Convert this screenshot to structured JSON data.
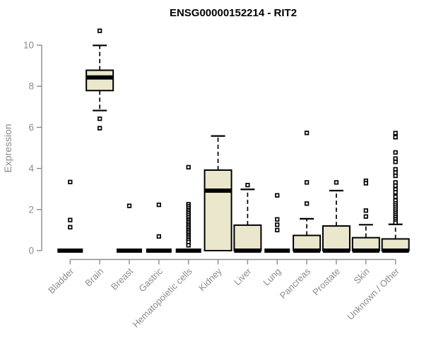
{
  "chart_data": {
    "type": "boxplot",
    "title": "ENSG00000152214 - RIT2",
    "xlabel": "",
    "ylabel": "Expression",
    "ylim": [
      0,
      10
    ],
    "yticks": [
      0,
      2,
      4,
      6,
      8,
      10
    ],
    "grid": false,
    "legend": false,
    "categories": [
      "Bladder",
      "Brain",
      "Breast",
      "Gastric",
      "Hematopoietic cells",
      "Kidney",
      "Liver",
      "Lung",
      "Pancreas",
      "Prostate",
      "Skin",
      "Unknown / Other"
    ],
    "boxes": [
      {
        "category": "Bladder",
        "q1": 0,
        "median": 0,
        "q3": 0,
        "whisker_low": 0,
        "whisker_high": 0,
        "outliers": [
          3.34,
          1.49,
          1.14
        ]
      },
      {
        "category": "Brain",
        "q1": 7.79,
        "median": 8.43,
        "q3": 8.78,
        "whisker_low": 6.82,
        "whisker_high": 9.99,
        "outliers": [
          10.7,
          6.42,
          5.96
        ]
      },
      {
        "category": "Breast",
        "q1": 0,
        "median": 0,
        "q3": 0,
        "whisker_low": 0,
        "whisker_high": 0,
        "outliers": [
          2.18
        ]
      },
      {
        "category": "Gastric",
        "q1": 0,
        "median": 0,
        "q3": 0,
        "whisker_low": 0,
        "whisker_high": 0,
        "outliers": [
          2.23,
          0.69
        ]
      },
      {
        "category": "Hematopoietic cells",
        "q1": 0,
        "median": 0,
        "q3": 0,
        "whisker_low": 0,
        "whisker_high": 0,
        "outliers": [
          4.06,
          2.26,
          2.16,
          2.07,
          1.98,
          1.9,
          1.82,
          1.73,
          1.64,
          1.55,
          1.47,
          1.39,
          1.31,
          1.23,
          1.15,
          1.07,
          0.99,
          0.91,
          0.83,
          0.75,
          0.67,
          0.59,
          0.51,
          0.42,
          0.26
        ]
      },
      {
        "category": "Kidney",
        "q1": 0,
        "median": 2.92,
        "q3": 3.92,
        "whisker_low": 0,
        "whisker_high": 5.58,
        "outliers": []
      },
      {
        "category": "Liver",
        "q1": 0,
        "median": 0,
        "q3": 1.24,
        "whisker_low": 0,
        "whisker_high": 2.98,
        "outliers": [
          3.19
        ]
      },
      {
        "category": "Lung",
        "q1": 0,
        "median": 0,
        "q3": 0,
        "whisker_low": 0,
        "whisker_high": 0,
        "outliers": [
          2.69,
          1.52,
          1.26,
          1.0
        ]
      },
      {
        "category": "Pancreas",
        "q1": 0,
        "median": 0,
        "q3": 0.74,
        "whisker_low": 0,
        "whisker_high": 1.55,
        "outliers": [
          5.73,
          3.32,
          2.29
        ]
      },
      {
        "category": "Prostate",
        "q1": 0,
        "median": 0,
        "q3": 1.2,
        "whisker_low": 0,
        "whisker_high": 2.92,
        "outliers": [
          3.32
        ]
      },
      {
        "category": "Skin",
        "q1": 0,
        "median": 0,
        "q3": 0.63,
        "whisker_low": 0,
        "whisker_high": 1.26,
        "outliers": [
          3.4,
          3.28,
          1.95,
          1.66
        ]
      },
      {
        "category": "Unknown / Other",
        "q1": 0,
        "median": 0,
        "q3": 0.57,
        "whisker_low": 0,
        "whisker_high": 1.28,
        "outliers": [
          5.72,
          5.52,
          4.78,
          4.48,
          4.32,
          3.96,
          3.8,
          3.64,
          3.32,
          3.16,
          2.98,
          2.84,
          2.62,
          2.44,
          2.3,
          2.2,
          2.1,
          2.0,
          1.9,
          1.81,
          1.72,
          1.63,
          1.54,
          1.45,
          1.36
        ]
      }
    ],
    "colors": {
      "box_fill": "#ebe7cc",
      "box_stroke": "#000000",
      "median": "#000000",
      "whisker": "#000000",
      "outlier_stroke": "#000000",
      "outlier_fill": "#ffffff",
      "axis": "#8c8c8c",
      "tick_label": "#8c8c8c",
      "title": "#000000",
      "background": "#ffffff"
    }
  }
}
